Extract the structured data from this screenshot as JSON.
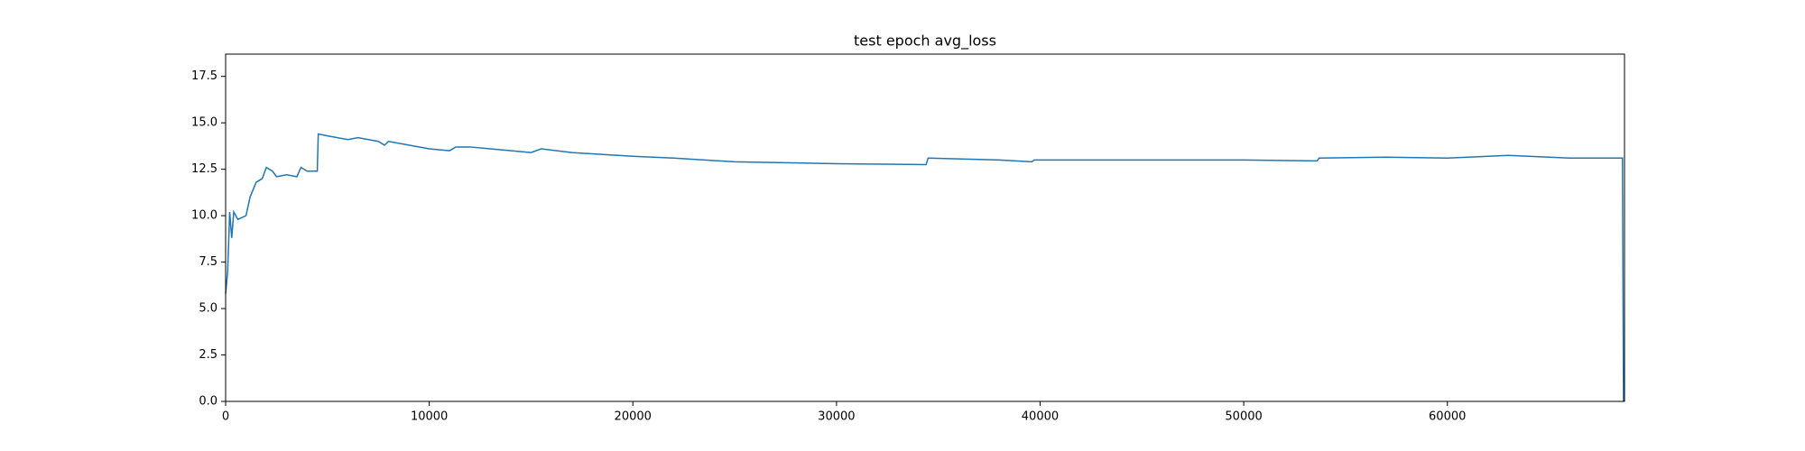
{
  "chart_data": {
    "type": "line",
    "title": "test epoch avg_loss",
    "title_color": "#ff0000",
    "x": [
      0,
      100,
      200,
      300,
      400,
      600,
      1000,
      1200,
      1500,
      1800,
      2000,
      2300,
      2500,
      3000,
      3500,
      3700,
      4000,
      4500,
      4550,
      5000,
      6000,
      6500,
      7500,
      7800,
      8000,
      9000,
      10000,
      11000,
      11300,
      12000,
      13000,
      15000,
      15500,
      17000,
      20000,
      22000,
      25000,
      30000,
      34400,
      34500,
      38000,
      39600,
      39700,
      44000,
      50000,
      53600,
      53700,
      57000,
      60000,
      63000,
      66000,
      68600,
      68650
    ],
    "series": [
      {
        "name": "avg_loss",
        "color": "#1f77b4",
        "values": [
          5.8,
          7.0,
          10.2,
          8.8,
          10.2,
          9.8,
          10.0,
          11.0,
          11.8,
          12.0,
          12.6,
          12.4,
          12.1,
          12.2,
          12.1,
          12.6,
          12.4,
          12.4,
          14.4,
          14.3,
          14.1,
          14.2,
          14.0,
          13.8,
          14.0,
          13.8,
          13.6,
          13.5,
          13.7,
          13.7,
          13.6,
          13.4,
          13.6,
          13.4,
          13.2,
          13.1,
          12.9,
          12.8,
          12.75,
          13.1,
          13.0,
          12.9,
          13.0,
          13.0,
          13.0,
          12.95,
          13.1,
          13.15,
          13.1,
          13.25,
          13.1,
          13.1,
          0
        ]
      }
    ],
    "xlim": [
      0,
      68700
    ],
    "ylim": [
      0,
      18.7
    ],
    "xticks": [
      0,
      10000,
      20000,
      30000,
      40000,
      50000,
      60000
    ],
    "yticks": [
      {
        "value": 0,
        "label": "0.0"
      },
      {
        "value": 2.5,
        "label": "2.5"
      },
      {
        "value": 5,
        "label": "5.0"
      },
      {
        "value": 7.5,
        "label": "7.5"
      },
      {
        "value": 10,
        "label": "10.0"
      },
      {
        "value": 12.5,
        "label": "12.5"
      },
      {
        "value": 15,
        "label": "15.0"
      },
      {
        "value": 17.5,
        "label": "17.5"
      }
    ],
    "grid": false
  }
}
